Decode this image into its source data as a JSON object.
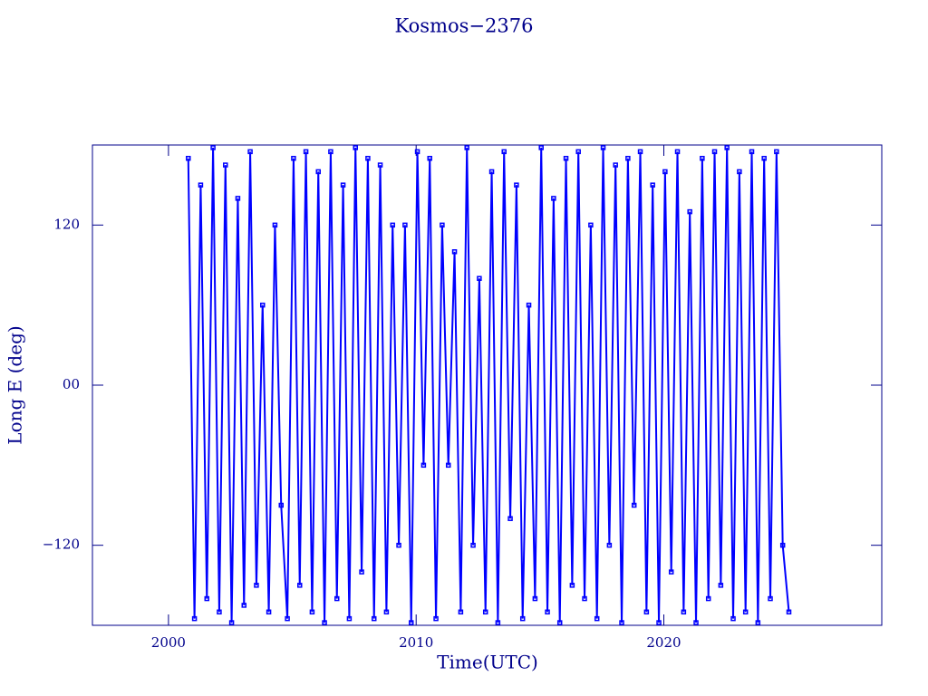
{
  "chart_data": {
    "type": "line",
    "title": "Kosmos−2376",
    "x_label": "Time(UTC)",
    "y_label": "Long E (deg)",
    "xlim": [
      1996.93,
      2028.8
    ],
    "xticks": [
      2000,
      2010,
      2020
    ],
    "ylim": [
      -180,
      180
    ],
    "yticks": [
      {
        "value": -120,
        "label": "−120"
      },
      {
        "value": 0,
        "label": "00"
      },
      {
        "value": 120,
        "label": "120"
      }
    ],
    "series": [
      {
        "color": "#0000ff",
        "x": [
          2000.8,
          2001.05,
          2001.3,
          2001.55,
          2001.8,
          2002.05,
          2002.3,
          2002.55,
          2002.8,
          2003.05,
          2003.3,
          2003.55,
          2003.8,
          2004.05,
          2004.3,
          2004.55,
          2004.8,
          2005.05,
          2005.3,
          2005.55,
          2005.8,
          2006.05,
          2006.3,
          2006.55,
          2006.8,
          2007.05,
          2007.3,
          2007.55,
          2007.8,
          2008.05,
          2008.3,
          2008.55,
          2008.8,
          2009.05,
          2009.3,
          2009.55,
          2009.8,
          2010.05,
          2010.3,
          2010.55,
          2010.8,
          2011.05,
          2011.3,
          2011.55,
          2011.8,
          2012.05,
          2012.3,
          2012.55,
          2012.8,
          2013.05,
          2013.3,
          2013.55,
          2013.8,
          2014.05,
          2014.3,
          2014.55,
          2014.8,
          2015.05,
          2015.3,
          2015.55,
          2015.8,
          2016.05,
          2016.3,
          2016.55,
          2016.8,
          2017.05,
          2017.3,
          2017.55,
          2017.8,
          2018.05,
          2018.3,
          2018.55,
          2018.8,
          2019.05,
          2019.3,
          2019.55,
          2019.8,
          2020.05,
          2020.3,
          2020.55,
          2020.8,
          2021.05,
          2021.3,
          2021.55,
          2021.8,
          2022.05,
          2022.3,
          2022.55,
          2022.8,
          2023.05,
          2023.3,
          2023.55,
          2023.8,
          2024.05,
          2024.3,
          2024.55,
          2024.8,
          2025.05
        ],
        "values": [
          170,
          -175,
          150,
          -160,
          178,
          -170,
          165,
          -178,
          140,
          -165,
          175,
          -150,
          60,
          -170,
          120,
          -90,
          -175,
          170,
          -150,
          175,
          -170,
          160,
          -178,
          175,
          -160,
          150,
          -175,
          178,
          -140,
          170,
          -175,
          165,
          -170,
          120,
          -120,
          120,
          -178,
          175,
          -60,
          170,
          -175,
          120,
          -60,
          100,
          -170,
          178,
          -120,
          80,
          -170,
          160,
          -178,
          175,
          -100,
          150,
          -175,
          60,
          -160,
          178,
          -170,
          140,
          -178,
          170,
          -150,
          175,
          -160,
          120,
          -175,
          178,
          -120,
          165,
          -178,
          170,
          -90,
          175,
          -170,
          150,
          -178,
          160,
          -140,
          175,
          -170,
          130,
          -178,
          170,
          -160,
          175,
          -150,
          178,
          -175,
          160,
          -170,
          175,
          -178,
          170,
          -160,
          175,
          -120,
          -170
        ]
      }
    ]
  }
}
